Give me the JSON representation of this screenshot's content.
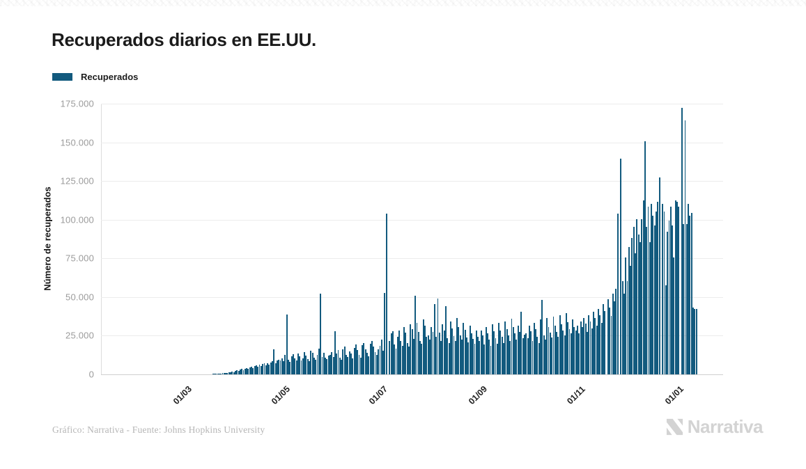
{
  "header": {
    "title": "Recuperados diarios en EE.UU."
  },
  "legend": {
    "items": [
      {
        "label": "Recuperados",
        "color": "#125A7E"
      }
    ]
  },
  "footer": {
    "credit": "Gráfico: Narrativa - Fuente: Johns Hopkins University",
    "logo_text": "Narrativa"
  },
  "chart_data": {
    "type": "bar",
    "title": "Recuperados diarios en EE.UU.",
    "series_name": "Recuperados",
    "xlabel": "",
    "ylabel": "Número de recuperados",
    "ylim": [
      0,
      175000
    ],
    "grid": true,
    "legend_position": "top-left",
    "bar_color": "#125A7E",
    "start_date": "2020-01-22",
    "y_ticks": [
      {
        "value": 0,
        "label": "0"
      },
      {
        "value": 25000,
        "label": "25.000"
      },
      {
        "value": 50000,
        "label": "50.000"
      },
      {
        "value": 75000,
        "label": "75.000"
      },
      {
        "value": 100000,
        "label": "100.000"
      },
      {
        "value": 125000,
        "label": "125.000"
      },
      {
        "value": 150000,
        "label": "150.000"
      },
      {
        "value": 175000,
        "label": "175.000"
      }
    ],
    "x_ticks": [
      {
        "label": "01/03",
        "day": 39
      },
      {
        "label": "01/05",
        "day": 100
      },
      {
        "label": "01/07",
        "day": 161
      },
      {
        "label": "01/09",
        "day": 223
      },
      {
        "label": "01/11",
        "day": 284
      },
      {
        "label": "01/01",
        "day": 345
      }
    ],
    "values": [
      0,
      0,
      0,
      0,
      0,
      0,
      0,
      0,
      0,
      0,
      0,
      0,
      0,
      0,
      0,
      0,
      0,
      0,
      0,
      0,
      0,
      0,
      0,
      0,
      0,
      0,
      0,
      0,
      0,
      0,
      1,
      1,
      2,
      2,
      3,
      3,
      4,
      5,
      6,
      6,
      7,
      8,
      10,
      12,
      15,
      18,
      22,
      26,
      30,
      40,
      50,
      65,
      80,
      100,
      120,
      150,
      180,
      220,
      260,
      320,
      380,
      450,
      520,
      600,
      700,
      800,
      950,
      1100,
      1300,
      1500,
      1800,
      1500,
      2200,
      2600,
      2100,
      3000,
      3400,
      2800,
      3800,
      4200,
      3500,
      4600,
      5000,
      4200,
      5400,
      5800,
      4800,
      6200,
      5600,
      6600,
      7000,
      5800,
      7400,
      6400,
      7800,
      8400,
      16200,
      7200,
      8800,
      9600,
      9000,
      10500,
      8500,
      12500,
      38500,
      9500,
      8200,
      11500,
      13000,
      10200,
      9200,
      13500,
      11800,
      8800,
      10400,
      14500,
      12200,
      9800,
      8400,
      15500,
      14000,
      10800,
      9400,
      12600,
      16500,
      52000,
      11400,
      13800,
      10600,
      9800,
      12000,
      12800,
      14500,
      11200,
      28000,
      13400,
      15800,
      10800,
      9600,
      16400,
      18200,
      12800,
      11200,
      15000,
      13400,
      10200,
      17200,
      19400,
      15800,
      12400,
      10800,
      18800,
      20400,
      16400,
      13800,
      11800,
      19600,
      21400,
      17800,
      14400,
      12800,
      16400,
      18400,
      22400,
      15200,
      52500,
      104000,
      0,
      21400,
      26400,
      27800,
      19400,
      16800,
      24400,
      28400,
      21800,
      18400,
      30400,
      26800,
      20400,
      17800,
      32400,
      29400,
      22800,
      51000,
      33400,
      27400,
      21400,
      19800,
      35400,
      31400,
      24400,
      25400,
      22400,
      30400,
      27400,
      45500,
      24400,
      49000,
      26800,
      21400,
      32400,
      28400,
      44000,
      23400,
      20400,
      34400,
      29800,
      24800,
      21800,
      36400,
      30400,
      25400,
      22400,
      33400,
      28800,
      23800,
      20800,
      31400,
      26400,
      22800,
      19800,
      28400,
      24400,
      21400,
      28400,
      25400,
      19400,
      30400,
      26400,
      22400,
      18400,
      32400,
      27800,
      23400,
      19800,
      33400,
      28400,
      24400,
      20400,
      34400,
      29400,
      25400,
      21400,
      35800,
      30400,
      26400,
      22400,
      31400,
      27400,
      40500,
      23400,
      25800,
      26400,
      23400,
      31400,
      27800,
      21400,
      33400,
      29400,
      24400,
      20400,
      35400,
      48000,
      25400,
      22400,
      36400,
      30400,
      26800,
      23800,
      37400,
      31400,
      27400,
      24400,
      38400,
      32400,
      28400,
      25400,
      39400,
      33800,
      29400,
      26400,
      35400,
      30800,
      28400,
      31400,
      26400,
      34400,
      30400,
      36400,
      32800,
      27400,
      38400,
      34400,
      29800,
      40400,
      36400,
      31400,
      42400,
      38400,
      33400,
      45400,
      40800,
      0,
      48400,
      43400,
      37800,
      52400,
      47400,
      55400,
      104000,
      0,
      139500,
      60400,
      52400,
      75400,
      60400,
      82400,
      70400,
      88400,
      95400,
      78400,
      100400,
      90400,
      85400,
      100400,
      112400,
      150500,
      95400,
      108400,
      85400,
      110400,
      102400,
      96400,
      105400,
      111400,
      127500,
      0,
      110400,
      105400,
      57400,
      92400,
      99400,
      108400,
      96400,
      75400,
      112400,
      111400,
      108400,
      0,
      172500,
      97400,
      164000,
      97400,
      110400,
      102400,
      104400,
      43400,
      42400,
      42400
    ]
  }
}
